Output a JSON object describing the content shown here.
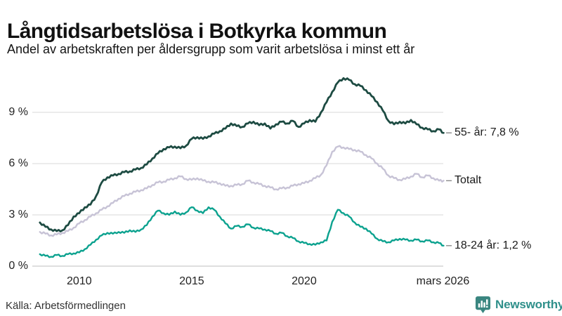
{
  "chart_data": {
    "type": "line",
    "title": "Långtidsarbetslösa i Botkyrka kommun",
    "subtitle": "Andel av arbetskraften per åldersgrupp som varit arbetslösa i minst ett år",
    "xlim": [
      2008.1,
      2026.25
    ],
    "ylim": [
      0,
      11.5
    ],
    "grid": "horizontal",
    "grid_color": "#e0e0e0",
    "baseline_color": "#c9c9c9",
    "leader_color": "#8a8a8a",
    "legend_position": "right-of-line-ends",
    "yticks": [
      {
        "value": 0,
        "label": "0 %"
      },
      {
        "value": 3,
        "label": "3 %"
      },
      {
        "value": 6,
        "label": "6 %"
      },
      {
        "value": 9,
        "label": "9 %"
      }
    ],
    "xticks": [
      {
        "value": 2010,
        "label": "2010"
      },
      {
        "value": 2015,
        "label": "2015"
      },
      {
        "value": 2020,
        "label": "2020"
      },
      {
        "value": 2026.17,
        "label": "mars 2026"
      }
    ],
    "x": [
      2008.25,
      2008.5,
      2008.75,
      2009,
      2009.25,
      2009.5,
      2009.75,
      2010,
      2010.25,
      2010.5,
      2010.75,
      2011,
      2011.25,
      2011.5,
      2011.75,
      2012,
      2012.25,
      2012.5,
      2012.75,
      2013,
      2013.25,
      2013.5,
      2013.75,
      2014,
      2014.25,
      2014.5,
      2014.75,
      2015,
      2015.25,
      2015.5,
      2015.75,
      2016,
      2016.25,
      2016.5,
      2016.75,
      2017,
      2017.25,
      2017.5,
      2017.75,
      2018,
      2018.25,
      2018.5,
      2018.75,
      2019,
      2019.25,
      2019.5,
      2019.75,
      2020,
      2020.25,
      2020.5,
      2020.75,
      2021,
      2021.25,
      2021.5,
      2021.75,
      2022,
      2022.25,
      2022.5,
      2022.75,
      2023,
      2023.25,
      2023.5,
      2023.75,
      2024,
      2024.25,
      2024.5,
      2024.75,
      2025,
      2025.25,
      2025.5,
      2025.75,
      2026,
      2026.2
    ],
    "series": [
      {
        "name": "55- år",
        "end_label": "55- år: 7,8 %",
        "end_value_text": "7,8 %",
        "color": "#1d4b42",
        "stroke_width": 2.8,
        "values": [
          2.55,
          2.3,
          2.15,
          2.05,
          2.1,
          2.4,
          2.9,
          3.1,
          3.45,
          3.6,
          4.1,
          4.9,
          5.2,
          5.3,
          5.4,
          5.5,
          5.55,
          5.65,
          5.75,
          5.95,
          6.3,
          6.6,
          6.85,
          6.95,
          7.0,
          6.9,
          7.05,
          7.45,
          7.55,
          7.45,
          7.6,
          7.75,
          7.9,
          8.05,
          8.35,
          8.2,
          8.15,
          8.35,
          8.45,
          8.25,
          8.35,
          8.05,
          8.3,
          8.45,
          8.35,
          8.5,
          8.15,
          8.35,
          8.55,
          8.45,
          9.0,
          9.6,
          10.2,
          10.75,
          11.0,
          10.9,
          10.65,
          10.55,
          10.3,
          9.95,
          9.6,
          9.1,
          8.5,
          8.3,
          8.45,
          8.35,
          8.55,
          8.3,
          8.1,
          8.0,
          7.9,
          8.0,
          7.8
        ]
      },
      {
        "name": "Totalt",
        "end_label": "Totalt",
        "end_value_text": "",
        "color": "#c7c3d6",
        "stroke_width": 2.4,
        "values": [
          2.0,
          1.9,
          1.8,
          1.85,
          1.95,
          2.05,
          2.25,
          2.5,
          2.7,
          2.9,
          3.1,
          3.3,
          3.5,
          3.7,
          3.95,
          4.1,
          4.25,
          4.35,
          4.45,
          4.55,
          4.75,
          4.9,
          4.95,
          5.05,
          5.15,
          5.25,
          5.1,
          5.05,
          5.15,
          5.0,
          4.95,
          4.9,
          4.85,
          4.7,
          4.7,
          4.75,
          4.8,
          5.0,
          4.9,
          4.8,
          4.7,
          4.6,
          4.5,
          4.55,
          4.6,
          4.7,
          4.8,
          4.85,
          5.0,
          5.15,
          5.35,
          5.9,
          6.7,
          7.0,
          6.95,
          6.85,
          6.8,
          6.7,
          6.5,
          6.3,
          6.0,
          5.7,
          5.3,
          5.15,
          5.05,
          5.1,
          5.25,
          5.4,
          5.2,
          5.3,
          5.15,
          5.0,
          5.0
        ]
      },
      {
        "name": "18-24 år",
        "end_label": "18-24 år: 1,2 %",
        "end_value_text": "1,2 %",
        "color": "#0ca28f",
        "stroke_width": 2.4,
        "values": [
          0.7,
          0.6,
          0.55,
          0.65,
          0.6,
          0.7,
          0.75,
          0.8,
          1.0,
          1.25,
          1.55,
          1.8,
          1.95,
          1.9,
          2.0,
          1.95,
          2.1,
          2.0,
          2.15,
          2.4,
          2.9,
          3.25,
          3.1,
          3.0,
          3.2,
          3.0,
          3.15,
          3.45,
          3.25,
          3.1,
          3.45,
          3.3,
          2.9,
          2.5,
          2.2,
          2.35,
          2.3,
          2.45,
          2.25,
          2.2,
          2.15,
          2.05,
          1.9,
          1.95,
          1.75,
          1.65,
          1.45,
          1.35,
          1.3,
          1.25,
          1.4,
          1.5,
          2.6,
          3.3,
          3.1,
          2.9,
          2.55,
          2.3,
          2.2,
          1.9,
          1.6,
          1.45,
          1.4,
          1.5,
          1.6,
          1.55,
          1.5,
          1.55,
          1.45,
          1.5,
          1.4,
          1.35,
          1.2
        ]
      }
    ]
  },
  "source": {
    "text": "Källa: Arbetsförmedlingen"
  },
  "branding": {
    "name": "Newsworthy",
    "icon": "bar-chart-speech-bubble-icon",
    "color": "#2e8f8a",
    "icon_color": "#3a8680"
  }
}
